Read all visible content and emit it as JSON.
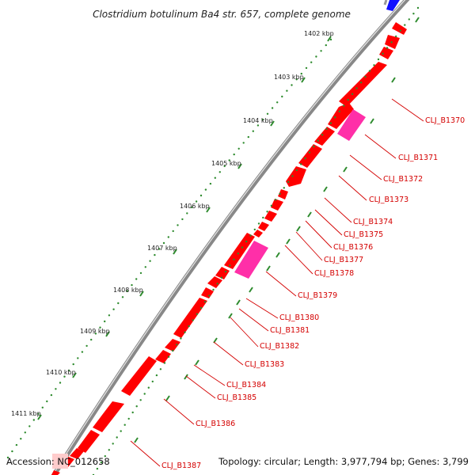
{
  "map": {
    "title": "Clostridium botulinum Ba4 str. 657, complete genome",
    "accession": "Accession: NC_012658",
    "summary": "Topology: circular; Length: 3,977,794 bp; Genes: 3,799",
    "kbp_ticks": [
      "1402 kbp",
      "1403 kbp",
      "1404 kbp",
      "1405 kbp",
      "1406 kbp",
      "1407 kbp",
      "1408 kbp",
      "1409 kbp",
      "1410 kbp",
      "1411 kbp"
    ],
    "gene_labels": [
      "CLJ_B1370",
      "CLJ_B1371",
      "CLJ_B1372",
      "CLJ_B1373",
      "CLJ_B1374",
      "CLJ_B1375",
      "CLJ_B1376",
      "CLJ_B1377",
      "CLJ_B1378",
      "CLJ_B1379",
      "CLJ_B1380",
      "CLJ_B1381",
      "CLJ_B1382",
      "CLJ_B1383",
      "CLJ_B1384",
      "CLJ_B1385",
      "CLJ_B1386",
      "CLJ_B1387"
    ]
  },
  "colors": {
    "gene": "#ff0000",
    "rrna": "#ff2fa8",
    "other_feature": "#1010ff",
    "backbone": "#888888",
    "tick": "#2e8b2e",
    "label": "#d40000"
  }
}
